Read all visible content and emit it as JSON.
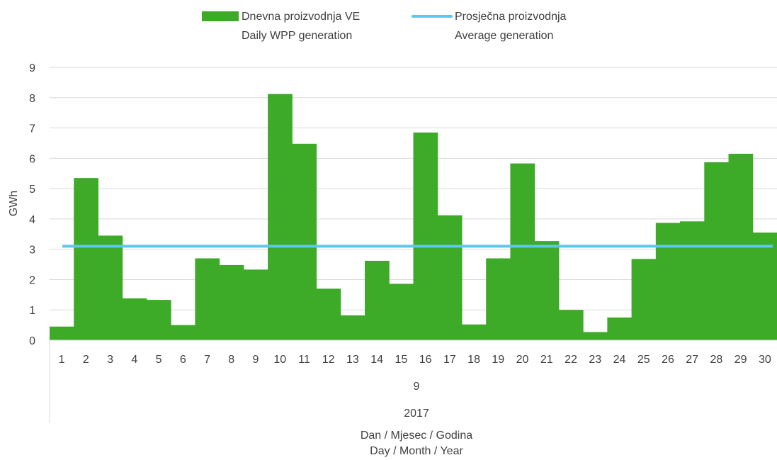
{
  "chart_data": {
    "type": "bar",
    "title": "",
    "ylabel": "GWh",
    "ylim": [
      0,
      9
    ],
    "yticks": [
      "0",
      "1",
      "2",
      "3",
      "4",
      "5",
      "6",
      "7",
      "8",
      "9"
    ],
    "grid": true,
    "legend_position": "top-center",
    "categories": [
      "1",
      "2",
      "3",
      "4",
      "5",
      "6",
      "7",
      "8",
      "9",
      "10",
      "11",
      "12",
      "13",
      "14",
      "15",
      "16",
      "17",
      "18",
      "19",
      "20",
      "21",
      "22",
      "23",
      "24",
      "25",
      "26",
      "27",
      "28",
      "29",
      "30"
    ],
    "month_label": "9",
    "year_label": "2017",
    "xlabel_line1": "Dan / Mjesec / Godina",
    "xlabel_line2": "Day / Month / Year",
    "series": [
      {
        "name": "Daily WPP generation",
        "name_line1": "Dnevna proizvodnja VE",
        "name_line2": "Daily WPP generation",
        "color": "#3daa28",
        "type": "bar",
        "values": [
          0.45,
          5.35,
          3.45,
          1.38,
          1.33,
          0.5,
          2.7,
          2.48,
          2.33,
          8.12,
          6.48,
          1.7,
          0.82,
          2.62,
          1.86,
          6.85,
          4.12,
          0.52,
          2.7,
          5.83,
          3.27,
          1.0,
          0.27,
          0.75,
          2.68,
          3.87,
          3.92,
          5.87,
          6.15,
          3.55
        ]
      },
      {
        "name": "Average generation",
        "name_line1": "Prosječna proizvodnja",
        "name_line2": "Average generation",
        "color": "#5bc8ee",
        "type": "line",
        "value": 3.1
      }
    ]
  }
}
